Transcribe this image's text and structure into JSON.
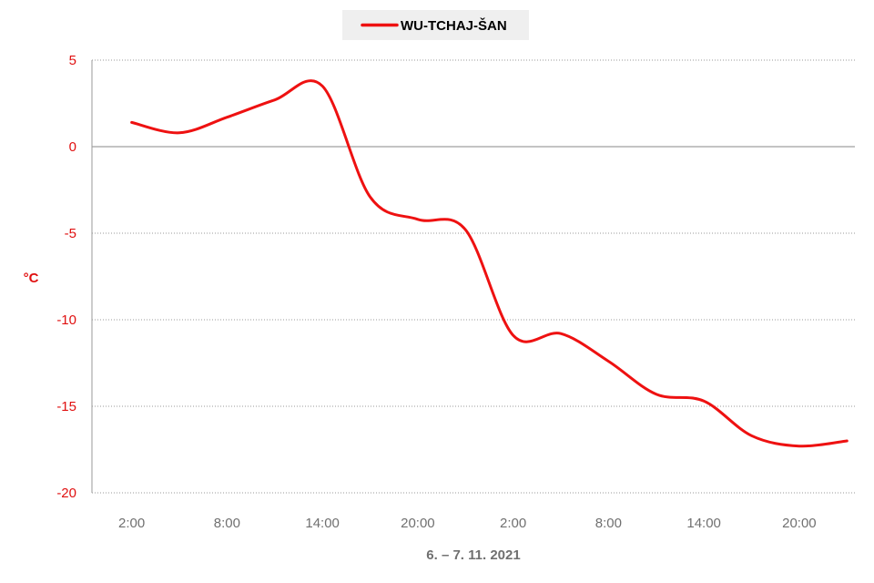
{
  "chart_data": {
    "type": "line",
    "title": "",
    "xlabel": "6. – 7. 11. 2021",
    "ylabel": "°C",
    "x_tick_labels": [
      "2:00",
      "8:00",
      "14:00",
      "20:00",
      "2:00",
      "8:00",
      "14:00",
      "20:00"
    ],
    "y_ticks": [
      5,
      0,
      -5,
      -10,
      -15,
      -20
    ],
    "ylim": [
      -20,
      5
    ],
    "grid": true,
    "legend_position": "top-center",
    "series": [
      {
        "name": "WU-TCHAJ-ŠAN",
        "color": "#ee1111",
        "x": [
          "6.11. 2:00",
          "6.11. 5:00",
          "6.11. 8:00",
          "6.11. 11:00",
          "6.11. 14:00",
          "6.11. 17:00",
          "6.11. 20:00",
          "6.11. 23:00",
          "7.11. 2:00",
          "7.11. 5:00",
          "7.11. 8:00",
          "7.11. 11:00",
          "7.11. 14:00",
          "7.11. 17:00",
          "7.11. 20:00",
          "7.11. 23:00"
        ],
        "values": [
          1.4,
          0.8,
          1.7,
          2.7,
          3.5,
          -2.9,
          -4.2,
          -4.8,
          -10.9,
          -10.8,
          -12.4,
          -14.3,
          -14.7,
          -16.7,
          -17.3,
          -17.0
        ]
      }
    ]
  }
}
